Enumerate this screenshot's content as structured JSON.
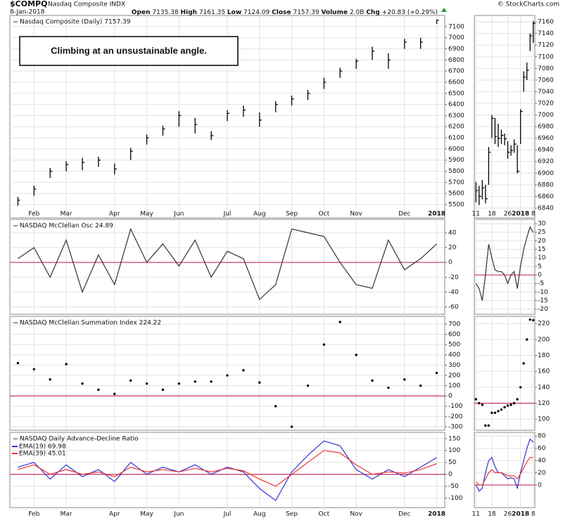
{
  "header": {
    "symbol": "$COMPQ",
    "name": "Nasdaq Composite INDX",
    "date": "8-Jan-2018",
    "source": "© StockCharts.com",
    "quote": [
      {
        "label": "Open",
        "value": "7135.38"
      },
      {
        "label": "High",
        "value": "7161.35"
      },
      {
        "label": "Low",
        "value": "7124.09"
      },
      {
        "label": "Close",
        "value": "7157.39"
      },
      {
        "label": "Volume",
        "value": "2.0B"
      },
      {
        "label": "Chg",
        "value": "+20.83 (+0.29%)"
      }
    ]
  },
  "chart_data": [
    {
      "type": "ohlc",
      "title": "Nasdaq Composite (Daily) 7157.39",
      "annotation": "Climbing at an unsustainable angle.",
      "color": "#000000",
      "categories": [
        null,
        "Feb",
        null,
        "Mar",
        null,
        null,
        "Apr",
        null,
        "May",
        null,
        "Jun",
        null,
        null,
        "Jul",
        null,
        "Aug",
        null,
        "Sep",
        null,
        "Oct",
        null,
        "Nov",
        null,
        null,
        "Dec",
        null,
        "2018"
      ],
      "values": [
        5540,
        5640,
        5800,
        5860,
        5880,
        5900,
        5820,
        5980,
        6100,
        6180,
        6300,
        6220,
        6120,
        6320,
        6350,
        6260,
        6400,
        6450,
        6500,
        6600,
        6700,
        6790,
        6880,
        6800,
        6960,
        6960,
        7157.39
      ],
      "low": [
        5490,
        5580,
        5740,
        5800,
        5810,
        5840,
        5770,
        5900,
        6040,
        6120,
        6200,
        6140,
        6080,
        6250,
        6290,
        6200,
        6330,
        6390,
        6440,
        6540,
        6640,
        6720,
        6800,
        6720,
        6900,
        6900,
        7124.09
      ],
      "high": [
        5570,
        5670,
        5830,
        5890,
        5920,
        5930,
        5870,
        6010,
        6130,
        6210,
        6340,
        6280,
        6160,
        6350,
        6390,
        6330,
        6430,
        6480,
        6530,
        6640,
        6730,
        6810,
        6920,
        6860,
        6990,
        7000,
        7161.35
      ],
      "ylim": [
        5380,
        7200
      ],
      "yticks": [
        5500,
        5600,
        5700,
        5800,
        5900,
        6000,
        6100,
        6200,
        6300,
        6400,
        6500,
        6600,
        6700,
        6800,
        6900,
        7000,
        7100
      ],
      "grid": true
    },
    {
      "type": "line",
      "title": "NASDAQ McClellan Osc 24.89",
      "hline": 0,
      "hline_color": "#cc3366",
      "series": [
        {
          "color": "#333333",
          "values": [
            5,
            20,
            -20,
            30,
            -40,
            10,
            -30,
            45,
            0,
            25,
            -5,
            30,
            -20,
            15,
            5,
            -50,
            -30,
            45,
            40,
            35,
            0,
            -30,
            -35,
            30,
            -10,
            5,
            24.89
          ]
        }
      ],
      "ylim": [
        -70,
        58
      ],
      "yticks": [
        -60,
        -40,
        -20,
        0,
        20,
        40
      ],
      "grid": true
    },
    {
      "type": "dot",
      "title": "NASDAQ McClellan Summation Index 224.22",
      "hline": 0,
      "hline_color": "#cc3366",
      "color": "#000000",
      "values": [
        320,
        260,
        160,
        310,
        120,
        60,
        20,
        150,
        120,
        60,
        120,
        140,
        140,
        200,
        250,
        130,
        -100,
        -300,
        100,
        500,
        720,
        400,
        150,
        80,
        160,
        100,
        224.22
      ],
      "ylim": [
        -335,
        775
      ],
      "yticks": [
        -300,
        -200,
        -100,
        0,
        100,
        200,
        300,
        400,
        500,
        600,
        700
      ],
      "grid": true
    },
    {
      "type": "line",
      "title": "NASDAQ Daily Advance-Decline Ratio",
      "hline": 0,
      "hline_color": "#cc3366",
      "categories": [
        null,
        "Feb",
        null,
        "Mar",
        null,
        null,
        "Apr",
        null,
        "May",
        null,
        "Jun",
        null,
        null,
        "Jul",
        null,
        "Aug",
        null,
        "Sep",
        null,
        "Oct",
        null,
        "Nov",
        null,
        null,
        "Dec",
        null,
        "2018"
      ],
      "series": [
        {
          "name": "EMA(19) 69.98",
          "color": "#3333cc",
          "values": [
            30,
            50,
            -20,
            40,
            -10,
            20,
            -30,
            50,
            0,
            30,
            10,
            40,
            0,
            30,
            10,
            -60,
            -110,
            10,
            80,
            140,
            120,
            20,
            -20,
            20,
            -10,
            30,
            69.98
          ]
        },
        {
          "name": "EMA(39) 45.01",
          "color": "#ee3333",
          "values": [
            20,
            40,
            0,
            20,
            0,
            10,
            -10,
            30,
            10,
            20,
            10,
            25,
            10,
            25,
            15,
            -20,
            -50,
            0,
            50,
            100,
            90,
            40,
            0,
            10,
            5,
            20,
            45.01
          ]
        }
      ],
      "ylim": [
        -140,
        176
      ],
      "yticks": [
        -100,
        -50,
        0,
        50,
        100,
        150
      ],
      "grid": true
    },
    {
      "type": "ohlc",
      "color": "#000000",
      "categories": [
        "11",
        null,
        null,
        null,
        null,
        "18",
        null,
        null,
        null,
        null,
        "26",
        null,
        null,
        null,
        "2018",
        null,
        null,
        null,
        "8"
      ],
      "values": [
        6870,
        6860,
        6875,
        6856,
        6936,
        6994,
        6963,
        6960,
        6965,
        6959,
        6936,
        6939,
        6950,
        6903,
        7006,
        7065,
        7077,
        7136,
        7157.39
      ],
      "low": [
        6850,
        6845,
        6855,
        6848,
        6880,
        6960,
        6950,
        6945,
        6950,
        6948,
        6925,
        6930,
        6935,
        6900,
        6950,
        7040,
        7060,
        7110,
        7124.09
      ],
      "high": [
        6885,
        6878,
        6888,
        6880,
        6945,
        7000,
        6995,
        6985,
        6975,
        6968,
        6955,
        6948,
        6958,
        6948,
        7010,
        7075,
        7090,
        7140,
        7161.35
      ],
      "ylim": [
        6823,
        7171
      ],
      "yticks": [
        6840,
        6860,
        6880,
        6900,
        6920,
        6940,
        6960,
        6980,
        7000,
        7020,
        7040,
        7060,
        7080,
        7100,
        7120,
        7140,
        7160
      ],
      "grid": true
    },
    {
      "type": "line",
      "hline": 0,
      "hline_color": "#cc3366",
      "series": [
        {
          "color": "#333333",
          "values": [
            -5,
            -8,
            -15,
            0,
            18,
            10,
            3,
            2,
            2,
            0,
            -5,
            0,
            2,
            -8,
            5,
            15,
            22,
            28,
            24.89
          ]
        }
      ],
      "ylim": [
        -23,
        32.5
      ],
      "yticks": [
        -20,
        -15,
        -10,
        -5,
        0,
        5,
        10,
        15,
        20,
        25,
        30
      ],
      "grid": true
    },
    {
      "type": "dot",
      "hline": 120,
      "hline_color": "#cc3366",
      "color": "#000000",
      "values": [
        125,
        120,
        118,
        92,
        92,
        108,
        108,
        110,
        112,
        115,
        117,
        118,
        120,
        125,
        140,
        170,
        200,
        225,
        224.22
      ],
      "ylim": [
        86,
        229
      ],
      "yticks": [
        100,
        120,
        140,
        160,
        180,
        200,
        220
      ],
      "grid": true
    },
    {
      "type": "line",
      "hline": 0,
      "hline_color": "#cc3366",
      "categories": [
        "11",
        null,
        null,
        null,
        null,
        "18",
        null,
        null,
        null,
        null,
        "26",
        null,
        null,
        null,
        "2018",
        null,
        null,
        null,
        "8"
      ],
      "series": [
        {
          "color": "#3333cc",
          "values": [
            0,
            -10,
            -5,
            20,
            40,
            45,
            30,
            20,
            20,
            15,
            10,
            12,
            10,
            -5,
            20,
            40,
            60,
            75,
            69.98
          ]
        },
        {
          "color": "#ee3333",
          "values": [
            5,
            0,
            0,
            10,
            20,
            25,
            20,
            20,
            20,
            18,
            15,
            15,
            15,
            10,
            18,
            28,
            38,
            45,
            45.01
          ]
        }
      ],
      "ylim": [
        -37,
        86
      ],
      "yticks": [
        0,
        20,
        40,
        60,
        80
      ],
      "grid": true
    }
  ]
}
